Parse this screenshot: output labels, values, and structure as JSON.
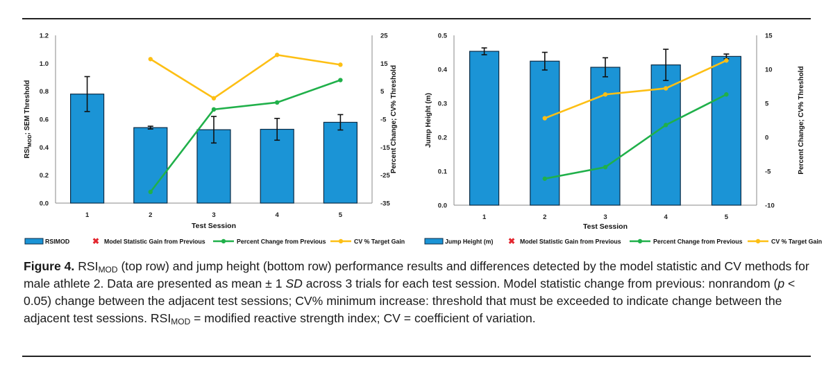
{
  "colors": {
    "bar": "#1b94d6",
    "bar_edge": "#0b2a44",
    "pct": "#20b04a",
    "cv": "#fdbf14",
    "marker": "#e3262f"
  },
  "legend_icons": {
    "model": "x-mark-icon"
  },
  "chart_data": [
    {
      "type": "bar",
      "title": "",
      "xlabel": "Test Session",
      "ylabel": "RSIMOD; SEM Threshold",
      "ylabel_main": "RSI",
      "ylabel_sub": "MOD",
      "ylabel_rest": "; SEM Threshold",
      "y2label": "Percent Change; CV% Threshold",
      "categories": [
        "1",
        "2",
        "3",
        "4",
        "5"
      ],
      "ylim": [
        0,
        1.2
      ],
      "yticks": [
        "0.0",
        "0.2",
        "0.4",
        "0.6",
        "0.8",
        "1.0",
        "1.2"
      ],
      "y2lim": [
        -35,
        25
      ],
      "y2ticks": [
        "-35",
        "-25",
        "-15",
        "-5",
        "5",
        "15",
        "25"
      ],
      "series": [
        {
          "name": "RSIMOD",
          "kind": "bar",
          "axis": "left",
          "values": [
            0.78,
            0.54,
            0.525,
            0.528,
            0.578
          ],
          "errors": [
            0.125,
            0.01,
            0.095,
            0.078,
            0.055
          ]
        },
        {
          "name": "Model Statistic Gain from Previous",
          "kind": "marker",
          "axis": "left",
          "values": [
            null,
            null,
            null,
            null,
            null
          ]
        },
        {
          "name": "Percent Change from Previous",
          "kind": "line",
          "axis": "right",
          "values": [
            null,
            -31,
            -1.5,
            1,
            9
          ]
        },
        {
          "name": "CV % Target Gain",
          "kind": "line",
          "axis": "right",
          "values": [
            null,
            16.5,
            2.5,
            18,
            14.5
          ]
        }
      ]
    },
    {
      "type": "bar",
      "title": "",
      "xlabel": "Test Session",
      "ylabel": "Jump Height (m)",
      "y2label": "Percent Change; CV% Threshold",
      "categories": [
        "1",
        "2",
        "3",
        "4",
        "5"
      ],
      "ylim": [
        0,
        0.5
      ],
      "yticks": [
        "0.0",
        "0.1",
        "0.2",
        "0.3",
        "0.4",
        "0.5"
      ],
      "y2lim": [
        -10,
        15
      ],
      "y2ticks": [
        "-10",
        "-5",
        "0",
        "5",
        "10",
        "15"
      ],
      "series": [
        {
          "name": "Jump Height (m)",
          "kind": "bar",
          "axis": "left",
          "values": [
            0.453,
            0.424,
            0.406,
            0.413,
            0.438
          ],
          "errors": [
            0.01,
            0.026,
            0.028,
            0.046,
            0.007
          ]
        },
        {
          "name": "Model Statistic Gain from Previous",
          "kind": "marker",
          "axis": "left",
          "values": [
            null,
            null,
            null,
            null,
            null
          ]
        },
        {
          "name": "Percent Change from Previous",
          "kind": "line",
          "axis": "right",
          "values": [
            null,
            -6.1,
            -4.4,
            1.8,
            6.3
          ]
        },
        {
          "name": "CV % Target Gain",
          "kind": "line",
          "axis": "right",
          "values": [
            null,
            2.8,
            6.3,
            7.2,
            11.3
          ]
        }
      ]
    }
  ],
  "caption": {
    "fig_label": "Figure 4.",
    "rsi": "RSI",
    "rsi_sub": "MOD",
    "s1": " (top row) and jump height (bottom row) performance results and differences detected by the model statistic and CV methods for male athlete 2. Data are presented as mean ± 1 ",
    "sd": "SD",
    "s2": " across 3 trials for each test session. Model statistic change from previous: nonrandom (",
    "p": "p",
    "s3": " < 0.05) change between the adjacent test sessions; CV% minimum increase: threshold that must be exceeded to indicate change between the adjacent test sessions. ",
    "rsi2": "RSI",
    "rsi2_sub": "MOD",
    "s4": " = modified reactive strength index; CV = coefficient of variation."
  }
}
